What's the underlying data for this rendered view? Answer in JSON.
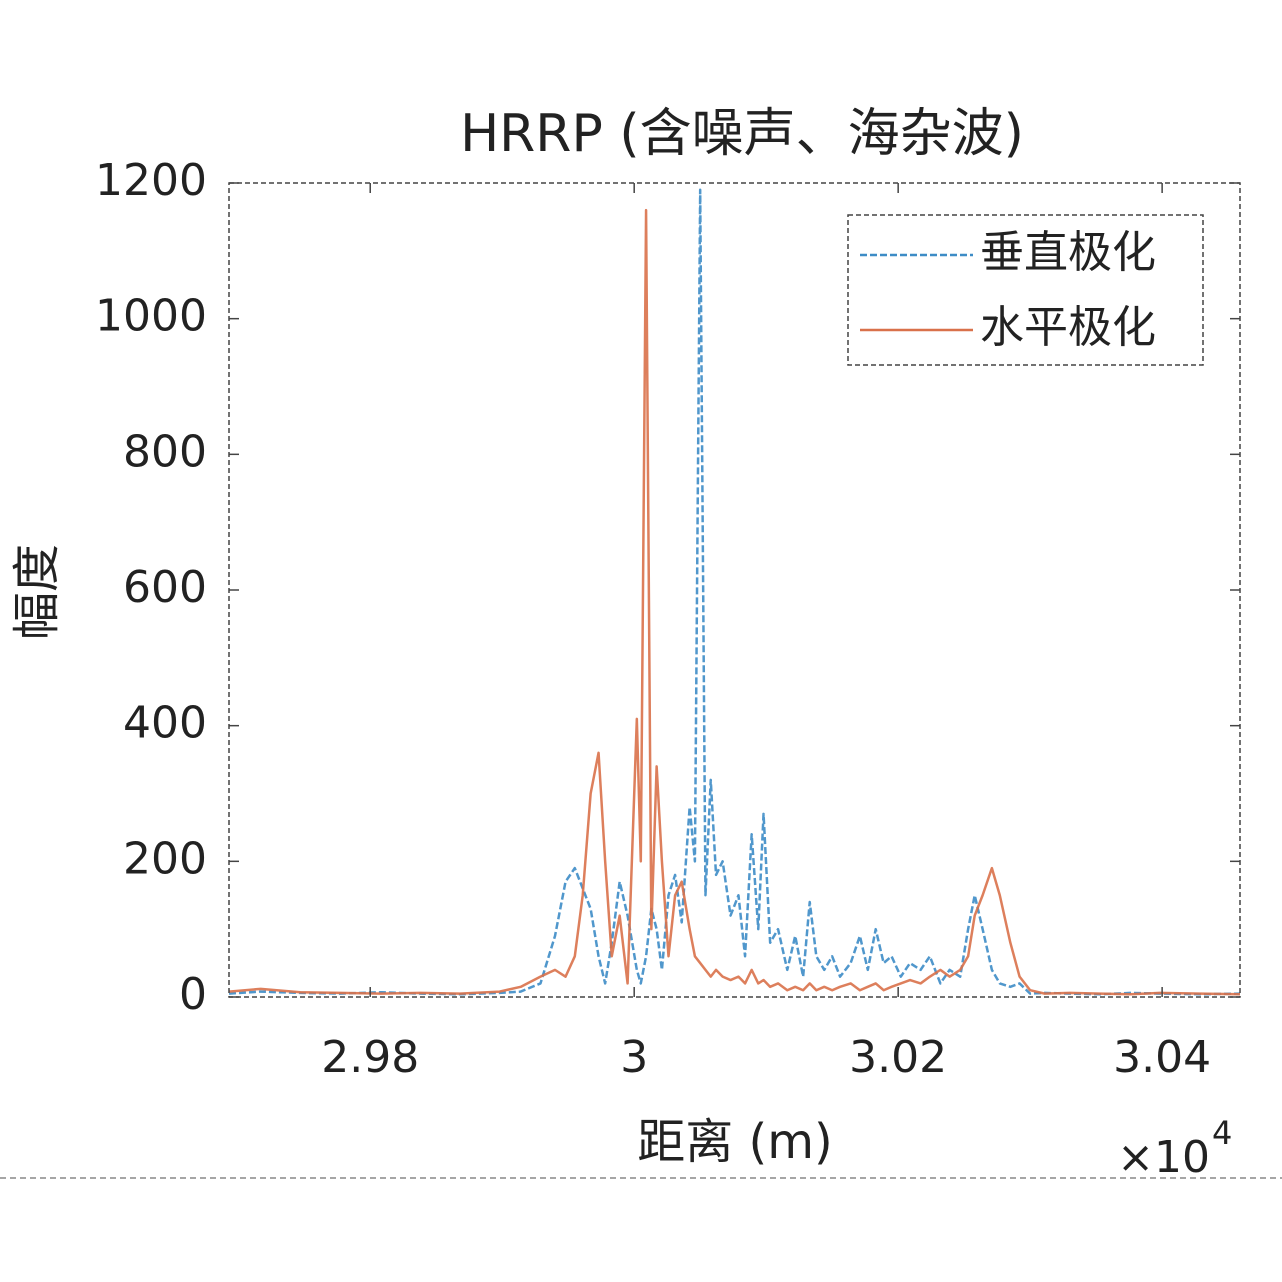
{
  "chart_data": {
    "type": "line",
    "title": "HRRP (含噪声、海杂波)",
    "x_label": "距离 (m)",
    "y_label": "幅度",
    "x_multiplier": "×10",
    "x_multiplier_exponent": 4,
    "xlim": [
      2.9693,
      3.0459
    ],
    "xticks": [
      2.98,
      3,
      3.02,
      3.04
    ],
    "ylim": [
      0,
      1200
    ],
    "yticks": [
      0,
      200,
      400,
      600,
      800,
      1000,
      1200
    ],
    "grid": false,
    "legend": "upper right",
    "x": [
      2.9693,
      2.9717,
      2.9747,
      2.9777,
      2.9808,
      2.9838,
      2.9868,
      2.9898,
      2.9914,
      2.9929,
      2.994,
      2.9948,
      2.9955,
      2.9961,
      2.9967,
      2.9973,
      2.9978,
      2.9983,
      2.9989,
      2.9995,
      3.0002,
      3.0005,
      3.0009,
      3.0013,
      3.0017,
      3.0021,
      3.0026,
      3.0031,
      3.0036,
      3.0042,
      3.0046,
      3.005,
      3.0054,
      3.0058,
      3.0062,
      3.0067,
      3.0073,
      3.0079,
      3.0084,
      3.0089,
      3.0094,
      3.0098,
      3.0103,
      3.0109,
      3.0116,
      3.0122,
      3.0128,
      3.0133,
      3.0138,
      3.0144,
      3.015,
      3.0156,
      3.0164,
      3.0171,
      3.0177,
      3.0183,
      3.0189,
      3.0195,
      3.0202,
      3.0209,
      3.0217,
      3.0224,
      3.0232,
      3.0239,
      3.0247,
      3.0253,
      3.0258,
      3.0264,
      3.0271,
      3.0277,
      3.0285,
      3.0292,
      3.03,
      3.0311,
      3.033,
      3.0353,
      3.0376,
      3.0398,
      3.0429,
      3.0459
    ],
    "series": [
      {
        "name": "垂直极化",
        "color": "#3d8cc6",
        "values": [
          5,
          8,
          6,
          5,
          7,
          5,
          4,
          6,
          8,
          20,
          90,
          170,
          190,
          160,
          130,
          60,
          20,
          80,
          170,
          120,
          40,
          20,
          60,
          130,
          100,
          40,
          150,
          180,
          110,
          280,
          200,
          1190,
          150,
          320,
          180,
          200,
          120,
          150,
          60,
          240,
          100,
          270,
          80,
          100,
          40,
          90,
          30,
          140,
          60,
          40,
          60,
          30,
          50,
          90,
          40,
          100,
          50,
          60,
          30,
          50,
          40,
          60,
          20,
          40,
          30,
          100,
          150,
          100,
          40,
          20,
          15,
          20,
          5,
          6,
          5,
          4,
          6,
          5,
          4,
          5
        ]
      },
      {
        "name": "水平极化",
        "color": "#d9714a",
        "values": [
          8,
          12,
          7,
          6,
          5,
          6,
          5,
          8,
          15,
          30,
          40,
          30,
          60,
          150,
          300,
          360,
          200,
          60,
          120,
          20,
          410,
          200,
          1160,
          100,
          340,
          200,
          60,
          150,
          170,
          100,
          60,
          50,
          40,
          30,
          40,
          30,
          25,
          30,
          20,
          40,
          20,
          25,
          15,
          20,
          10,
          15,
          10,
          20,
          10,
          15,
          10,
          15,
          20,
          10,
          15,
          20,
          10,
          15,
          20,
          25,
          20,
          30,
          40,
          30,
          40,
          60,
          120,
          150,
          190,
          150,
          80,
          30,
          10,
          5,
          6,
          5,
          4,
          6,
          5,
          4
        ]
      }
    ]
  }
}
